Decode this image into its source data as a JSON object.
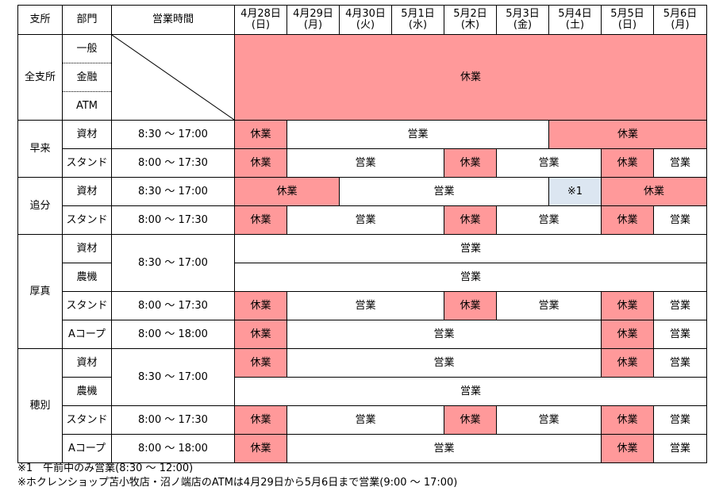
{
  "header": {
    "branch": "支所",
    "dept": "部門",
    "hours": "営業時間",
    "dates": [
      {
        "date": "4月28日",
        "dow": "(日)"
      },
      {
        "date": "4月29日",
        "dow": "(月)"
      },
      {
        "date": "4月30日",
        "dow": "(火)"
      },
      {
        "date": "5月1日",
        "dow": "(水)"
      },
      {
        "date": "5月2日",
        "dow": "(木)"
      },
      {
        "date": "5月3日",
        "dow": "(金)"
      },
      {
        "date": "5月4日",
        "dow": "(土)"
      },
      {
        "date": "5月5日",
        "dow": "(日)"
      },
      {
        "date": "5月6日",
        "dow": "(月)"
      }
    ]
  },
  "labels": {
    "closed": "休業",
    "open": "営業",
    "note1_mark": "※1"
  },
  "branches": {
    "all": {
      "name": "全支所",
      "depts": [
        "一般",
        "金融",
        "ATM"
      ]
    },
    "hayakita": {
      "name": "早来",
      "depts": [
        "資材",
        "スタンド"
      ],
      "hours": [
        "8:30 ～ 17:00",
        "8:00 ～ 17:30"
      ]
    },
    "oiwake": {
      "name": "追分",
      "depts": [
        "資材",
        "スタンド"
      ],
      "hours": [
        "8:30 ～ 17:00",
        "8:00 ～ 17:30"
      ]
    },
    "atsuma": {
      "name": "厚真",
      "depts": [
        "資材",
        "農機",
        "スタンド",
        "Aコープ"
      ],
      "hours": [
        "8:30 ～ 17:00",
        "8:00 ～ 17:30",
        "8:00 ～ 18:00"
      ]
    },
    "hobetsu": {
      "name": "穂別",
      "depts": [
        "資材",
        "農機",
        "スタンド",
        "Aコープ"
      ],
      "hours": [
        "8:30 ～ 17:00",
        "8:00 ～ 17:30",
        "8:00 ～ 18:00"
      ]
    }
  },
  "notes": [
    "※1　午前中のみ営業(8:30 ～ 12:00)",
    "※ホクレンショップ苫小牧店・沼ノ端店のATMは4月29日から5月6日まで営業(9:00 ～ 17:00)"
  ],
  "colors": {
    "closed": "#ff999a",
    "half_day": "#dce6f1"
  }
}
